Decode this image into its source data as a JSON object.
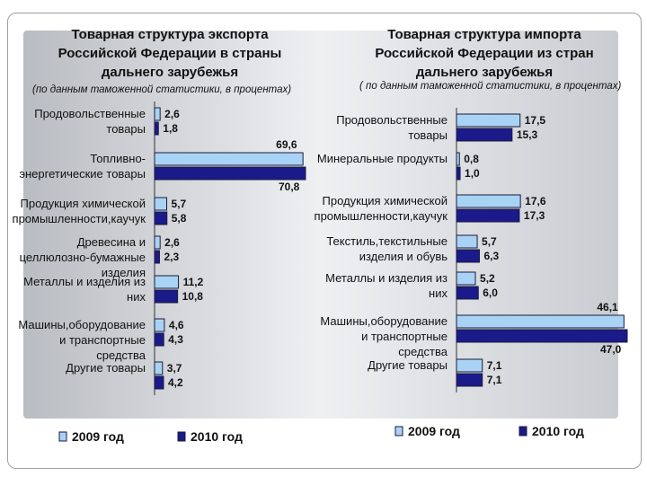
{
  "chart_data": [
    {
      "type": "bar",
      "orientation": "horizontal",
      "title": "Товарная структура экспорта Российской Федерации в страны дальнего зарубежья",
      "subtitle": "(по данным таможенной статистики, в процентах)",
      "categories": [
        "Продовольственные товары",
        "Топливно-энергетические товары",
        "Продукция химической промышленности,каучук",
        "Древесина и целлюлозно-бумажные изделия",
        "Металлы и изделия из них",
        "Машины,оборудование и транспортные средства",
        "Другие товары"
      ],
      "series": [
        {
          "name": "2009 год",
          "color": "#a9d3f5",
          "values": [
            2.6,
            69.6,
            5.7,
            2.6,
            11.2,
            4.6,
            3.7
          ],
          "value_labels": [
            "2,6",
            "69,6",
            "5,7",
            "2,6",
            "11,2",
            "4,6",
            "3,7"
          ]
        },
        {
          "name": "2010 год",
          "color": "#1a1a8a",
          "values": [
            1.8,
            70.8,
            5.8,
            2.3,
            10.8,
            4.3,
            4.2
          ],
          "value_labels": [
            "1,8",
            "70,8",
            "5,8",
            "2,3",
            "10,8",
            "4,3",
            "4,2"
          ]
        }
      ]
    },
    {
      "type": "bar",
      "orientation": "horizontal",
      "title": "Товарная структура импорта Российской Федерации из стран дальнего зарубежья",
      "subtitle": "( по данным таможенной статистики, в процентах)",
      "categories": [
        "Продовольственные товары",
        "Минеральные продукты",
        "Продукция химической промышленности,каучук",
        "Текстиль,текстильные изделия и обувь",
        "Металлы и изделия из них",
        "Машины,оборудование и транспортные средства",
        "Другие товары"
      ],
      "series": [
        {
          "name": "2009 год",
          "color": "#a9d3f5",
          "values": [
            17.5,
            0.8,
            17.6,
            5.7,
            5.2,
            46.1,
            7.1
          ],
          "value_labels": [
            "17,5",
            "0,8",
            "17,6",
            "5,7",
            "5,2",
            "46,1",
            "7,1"
          ]
        },
        {
          "name": "2010 год",
          "color": "#1a1a8a",
          "values": [
            15.3,
            1.0,
            17.3,
            6.3,
            6.0,
            47.0,
            7.1
          ],
          "value_labels": [
            "15,3",
            "1,0",
            "17,3",
            "6,3",
            "6,0",
            "47,0",
            "7,1"
          ]
        }
      ]
    }
  ]
}
